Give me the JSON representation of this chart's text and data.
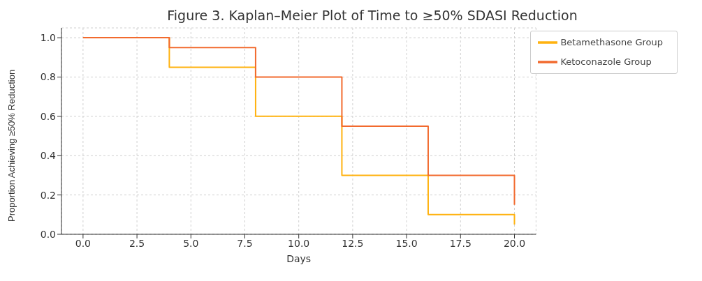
{
  "chart_data": {
    "type": "step",
    "title": "Figure 3. Kaplan–Meier Plot of Time to ≥50% SDASI Reduction",
    "xlabel": "Days",
    "ylabel": "Proportion Achieving ≥50% Reduction",
    "x": [
      0,
      4,
      8,
      12,
      16,
      20
    ],
    "series": [
      {
        "name": "Betamethasone Group",
        "color": "#ffb20f",
        "values": [
          1.0,
          0.85,
          0.6,
          0.3,
          0.1,
          0.05
        ]
      },
      {
        "name": "Ketoconazole Group",
        "color": "#f26a2e",
        "values": [
          1.0,
          0.95,
          0.8,
          0.55,
          0.3,
          0.15
        ]
      }
    ],
    "xlim": [
      -1,
      21
    ],
    "xticks": [
      {
        "value": 0,
        "label": "0.0"
      },
      2.5,
      {
        "value": 5,
        "label": "5.0"
      },
      7.5,
      {
        "value": 10,
        "label": "10.0"
      },
      12.5,
      {
        "value": 15,
        "label": "15.0"
      },
      17.5,
      {
        "value": 20,
        "label": "20.0"
      }
    ],
    "ylim": [
      0,
      1.05
    ],
    "yticks": [
      {
        "value": 0,
        "label": "0.0"
      },
      0.2,
      0.4,
      0.6,
      0.8,
      {
        "value": 1,
        "label": "1.0"
      }
    ],
    "grid": true,
    "legend": "top right",
    "marker": "none",
    "line_style": "solid"
  }
}
